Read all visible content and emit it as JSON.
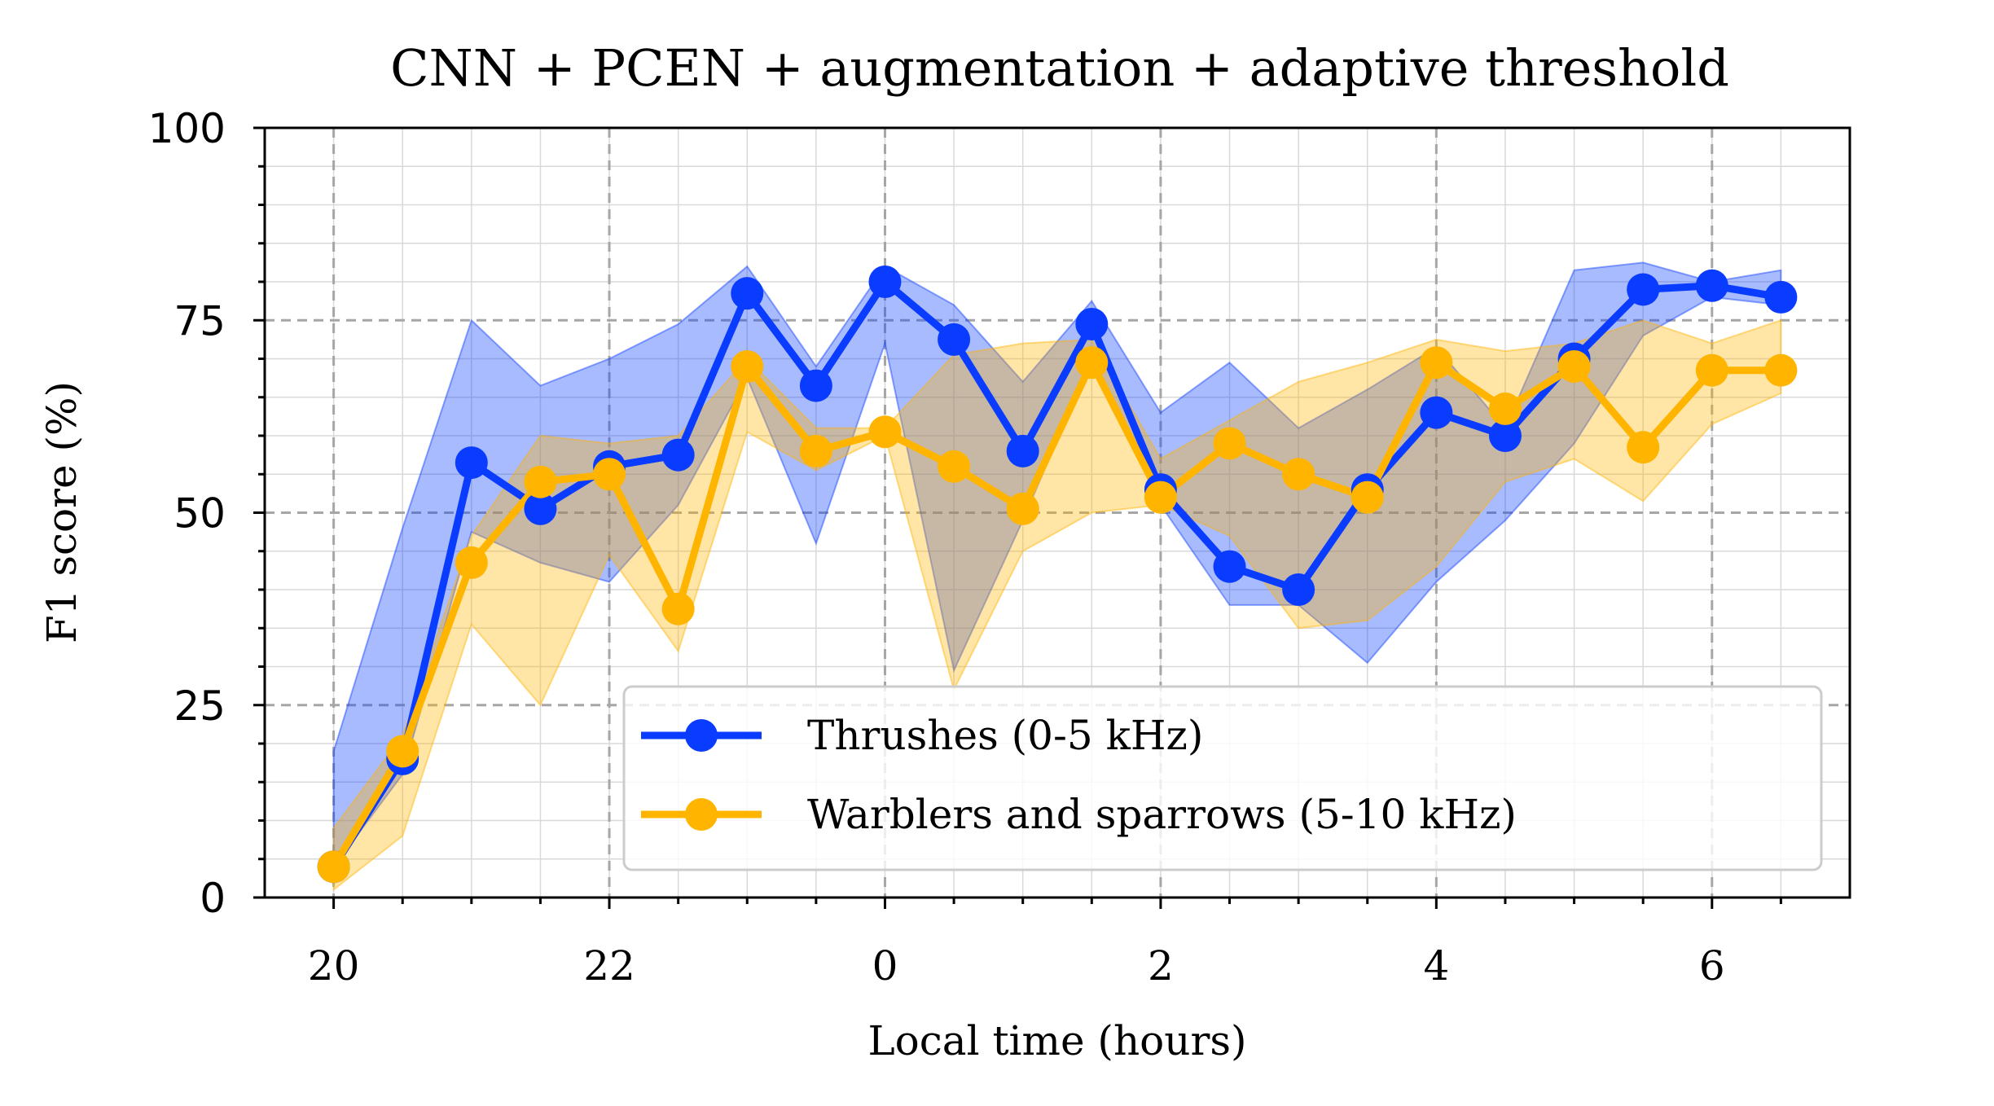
{
  "chart_data": {
    "type": "line",
    "title": "CNN + PCEN + augmentation + adaptive threshold",
    "xlabel": "Local time (hours)",
    "ylabel": "F1 score (%)",
    "x": [
      20,
      20.5,
      21,
      21.5,
      22,
      22.5,
      23,
      23.5,
      24,
      24.5,
      25,
      25.5,
      26,
      26.5,
      27,
      27.5,
      28,
      28.5,
      29,
      29.5,
      30,
      30.5
    ],
    "xlim": [
      19.5,
      31
    ],
    "ylim": [
      0,
      100
    ],
    "xticks": [
      20,
      22,
      24,
      26,
      28,
      30
    ],
    "xtick_labels": [
      "20",
      "22",
      "0",
      "2",
      "4",
      "6"
    ],
    "yticks": [
      0,
      25,
      50,
      75,
      100
    ],
    "ytick_labels": [
      "0",
      "25",
      "50",
      "75",
      "100"
    ],
    "grid": true,
    "legend_position": "lower-right",
    "series": [
      {
        "name": "Thrushes (0-5 kHz)",
        "color": "#0a3cff",
        "values": [
          4,
          18,
          56.5,
          50.5,
          56,
          57.5,
          78.5,
          66.5,
          80,
          72.5,
          58,
          74.5,
          53,
          43,
          40,
          53,
          63,
          60,
          70,
          79,
          79.5,
          78
        ],
        "band_upper": [
          19,
          48,
          75,
          66.5,
          70,
          74.5,
          82,
          69,
          82,
          77,
          67,
          77.5,
          63,
          69.5,
          61,
          66,
          71.5,
          61,
          81.5,
          82.5,
          80,
          81.5
        ],
        "band_lower": [
          4,
          16,
          47.5,
          43.5,
          41,
          51,
          67.5,
          46,
          72,
          29.5,
          49,
          70,
          51,
          38,
          38,
          30.5,
          41,
          49,
          59,
          73,
          78,
          77
        ]
      },
      {
        "name": "Warblers and sparrows (5-10 kHz)",
        "color": "#ffb400",
        "values": [
          4,
          19,
          43.5,
          54,
          55,
          37.5,
          69,
          58,
          60.5,
          56,
          50.5,
          69.5,
          52,
          59,
          55,
          52,
          69.5,
          63.5,
          69,
          58.5,
          68.5,
          68.5
        ],
        "band_upper": [
          9,
          21,
          47,
          60,
          59,
          60,
          70,
          61,
          61,
          70.5,
          72,
          72.5,
          57,
          62,
          67,
          69.5,
          72.5,
          71,
          72,
          75,
          72,
          75
        ],
        "band_lower": [
          1,
          8,
          35.5,
          25,
          44.5,
          32,
          60.5,
          55.5,
          60,
          27,
          45,
          50,
          51,
          47,
          35,
          36,
          43,
          54,
          57,
          51.5,
          61.5,
          65.5
        ]
      }
    ]
  }
}
